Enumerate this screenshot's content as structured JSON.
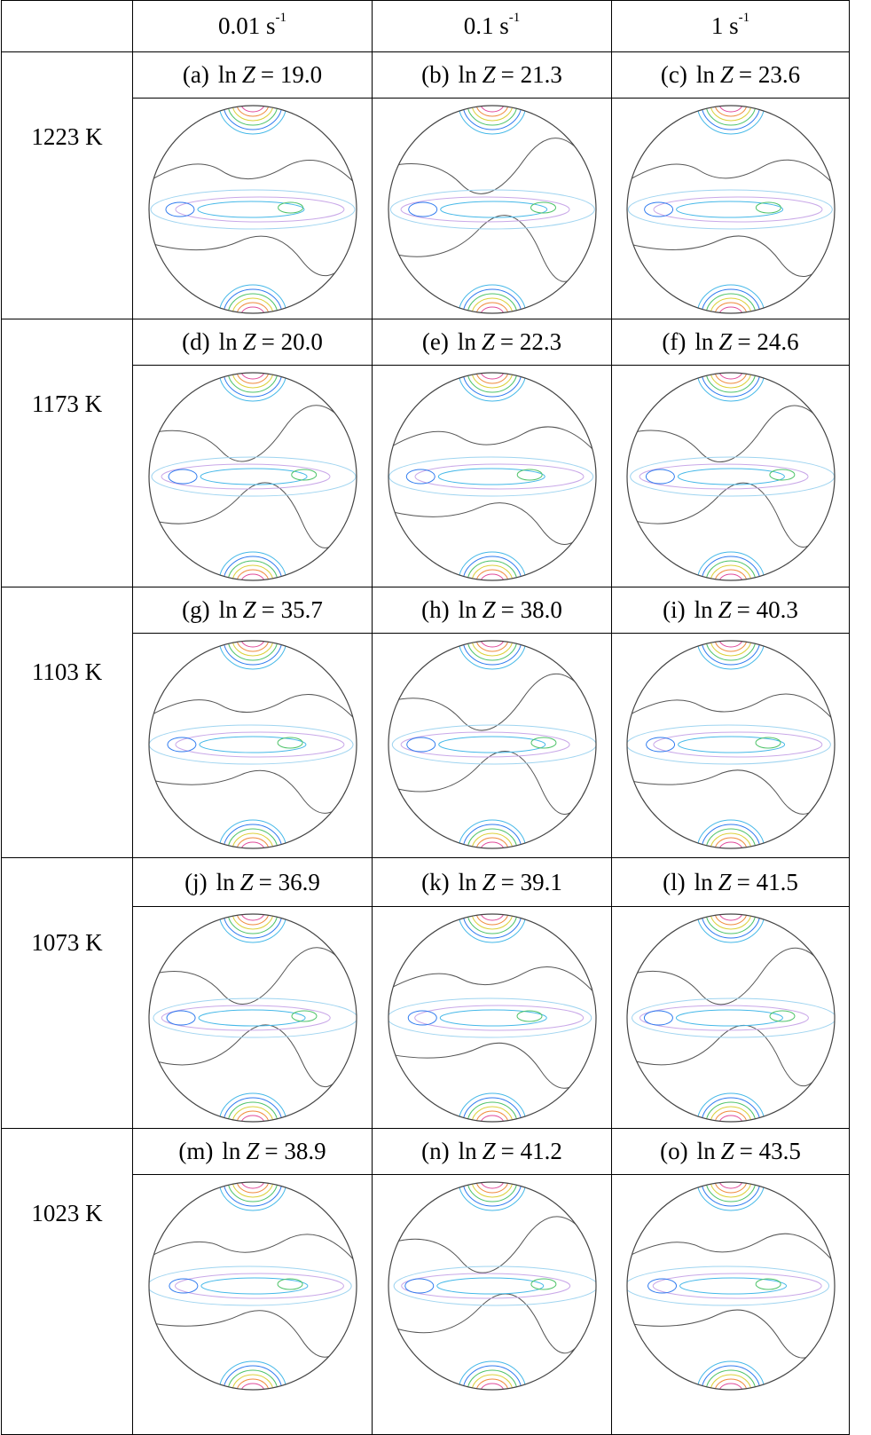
{
  "header": {
    "corner": "",
    "columns": [
      {
        "base": "0.01 s",
        "sup": "-1"
      },
      {
        "base": "0.1 s",
        "sup": "-1"
      },
      {
        "base": "1 s",
        "sup": "-1"
      }
    ]
  },
  "rows": [
    {
      "temperature": "1223 K",
      "panels": [
        {
          "tag": "(a)",
          "expr": "ln",
          "var": "Z",
          "rest": "= 19.0"
        },
        {
          "tag": "(b)",
          "expr": "ln",
          "var": "Z",
          "rest": "= 21.3"
        },
        {
          "tag": "(c)",
          "expr": "ln",
          "var": "Z",
          "rest": "= 23.6"
        }
      ]
    },
    {
      "temperature": "1173 K",
      "panels": [
        {
          "tag": "(d)",
          "expr": "ln",
          "var": "Z",
          "rest": "= 20.0"
        },
        {
          "tag": "(e)",
          "expr": "ln",
          "var": "Z",
          "rest": "= 22.3"
        },
        {
          "tag": "(f)",
          "expr": "ln",
          "var": "Z",
          "rest": "= 24.6"
        }
      ]
    },
    {
      "temperature": "1103 K",
      "panels": [
        {
          "tag": "(g)",
          "expr": "ln",
          "var": "Z",
          "rest": "= 35.7"
        },
        {
          "tag": "(h)",
          "expr": "ln",
          "var": "Z",
          "rest": "= 38.0"
        },
        {
          "tag": "(i)",
          "expr": "ln",
          "var": "Z",
          "rest": "= 40.3"
        }
      ]
    },
    {
      "temperature": "1073 K",
      "panels": [
        {
          "tag": "(j)",
          "expr": "ln",
          "var": "Z",
          "rest": "= 36.9"
        },
        {
          "tag": "(k)",
          "expr": "ln",
          "var": "Z",
          "rest": "= 39.1"
        },
        {
          "tag": "(l)",
          "expr": "ln",
          "var": "Z",
          "rest": "= 41.5"
        }
      ]
    },
    {
      "temperature": "1023 K",
      "panels": [
        {
          "tag": "(m)",
          "expr": "ln",
          "var": "Z",
          "rest": "= 38.9"
        },
        {
          "tag": "(n)",
          "expr": "ln",
          "var": "Z",
          "rest": "= 41.2"
        },
        {
          "tag": "(o)",
          "expr": "ln",
          "var": "Z",
          "rest": "= 43.5"
        }
      ]
    }
  ]
}
